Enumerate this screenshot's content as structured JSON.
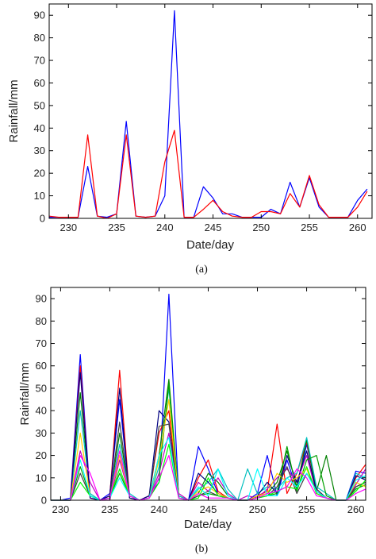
{
  "chart_data": [
    {
      "type": "line",
      "panel_label": "(a)",
      "xlabel": "Date/day",
      "ylabel": "Rainfall/mm",
      "xlim": [
        228,
        261.5
      ],
      "ylim": [
        0,
        95
      ],
      "xticks": [
        230,
        235,
        240,
        245,
        250,
        255,
        260
      ],
      "yticks": [
        0,
        10,
        20,
        30,
        40,
        50,
        60,
        70,
        80,
        90
      ],
      "grid": false,
      "x": [
        228,
        229,
        230,
        231,
        232,
        233,
        234,
        235,
        236,
        237,
        238,
        239,
        240,
        241,
        242,
        243,
        244,
        245,
        246,
        247,
        248,
        249,
        250,
        251,
        252,
        253,
        254,
        255,
        256,
        257,
        258,
        259,
        260,
        261
      ],
      "series": [
        {
          "color": "#0000ff",
          "values": [
            0.5,
            0.5,
            0.5,
            0.5,
            23,
            1,
            0.5,
            2,
            43,
            1,
            0.5,
            1,
            10,
            92,
            0.5,
            0.5,
            14,
            9,
            2,
            2,
            0.5,
            0.5,
            0.5,
            4,
            2,
            16,
            5,
            18,
            5,
            0.5,
            0.5,
            0.5,
            8,
            13
          ]
        },
        {
          "color": "#ff0000",
          "values": [
            1,
            0.5,
            0.5,
            0.5,
            37,
            1,
            0,
            2,
            37,
            1,
            0.5,
            1,
            25,
            39,
            0.5,
            0.5,
            4,
            8,
            3,
            1,
            0.5,
            0.5,
            3,
            3,
            2,
            11,
            5,
            19,
            6,
            0.5,
            0.5,
            0.5,
            5,
            12
          ]
        }
      ]
    },
    {
      "type": "line",
      "panel_label": "(b)",
      "xlabel": "Date/day",
      "ylabel": "Rainfall/mm",
      "xlim": [
        229,
        261
      ],
      "ylim": [
        0,
        95
      ],
      "xticks": [
        230,
        235,
        240,
        245,
        250,
        255,
        260
      ],
      "yticks": [
        0,
        10,
        20,
        30,
        40,
        50,
        60,
        70,
        80,
        90
      ],
      "grid": false,
      "x": [
        229,
        230,
        231,
        232,
        233,
        234,
        235,
        236,
        237,
        238,
        239,
        240,
        241,
        242,
        243,
        244,
        245,
        246,
        247,
        248,
        249,
        250,
        251,
        252,
        253,
        254,
        255,
        256,
        257,
        258,
        259,
        260,
        261
      ],
      "series": [
        {
          "color": "#0000ff",
          "values": [
            0,
            0,
            1,
            65,
            2,
            0,
            3,
            45,
            2,
            0,
            2,
            8,
            92,
            1,
            0,
            24,
            14,
            3,
            1,
            0,
            0,
            3,
            20,
            2,
            18,
            5,
            25,
            5,
            1,
            0,
            0,
            13,
            12
          ]
        },
        {
          "color": "#ff0000",
          "values": [
            0,
            0,
            0,
            60,
            1,
            0,
            2,
            58,
            1,
            0,
            2,
            30,
            40,
            1,
            0,
            10,
            18,
            4,
            1,
            0,
            0,
            2,
            4,
            34,
            3,
            12,
            26,
            4,
            1,
            0,
            0,
            10,
            16
          ]
        },
        {
          "color": "#008000",
          "values": [
            0,
            0,
            0,
            48,
            2,
            0,
            1,
            30,
            2,
            0,
            1,
            20,
            54,
            2,
            0,
            3,
            12,
            8,
            2,
            0,
            0,
            2,
            3,
            8,
            22,
            6,
            27,
            4,
            20,
            0,
            0,
            6,
            8
          ]
        },
        {
          "color": "#00bfbf",
          "values": [
            0,
            0,
            0,
            40,
            3,
            0,
            1,
            25,
            3,
            0,
            1,
            15,
            50,
            2,
            0,
            5,
            8,
            14,
            5,
            0,
            14,
            3,
            6,
            5,
            10,
            12,
            28,
            6,
            3,
            0,
            0,
            12,
            10
          ]
        },
        {
          "color": "#bf00bf",
          "values": [
            0,
            0,
            0,
            22,
            8,
            0,
            0,
            18,
            2,
            0,
            1,
            12,
            30,
            3,
            0,
            8,
            4,
            10,
            3,
            0,
            2,
            1,
            5,
            10,
            14,
            8,
            20,
            3,
            1,
            0,
            0,
            7,
            14
          ]
        },
        {
          "color": "#000080",
          "values": [
            0,
            0,
            0,
            57,
            1,
            0,
            2,
            50,
            1,
            0,
            2,
            40,
            35,
            1,
            0,
            12,
            8,
            3,
            1,
            0,
            0,
            2,
            8,
            3,
            20,
            8,
            22,
            4,
            1,
            0,
            0,
            11,
            9
          ]
        },
        {
          "color": "#00a000",
          "values": [
            0,
            0,
            0,
            15,
            2,
            0,
            1,
            12,
            2,
            0,
            1,
            10,
            52,
            1,
            0,
            2,
            3,
            2,
            1,
            0,
            0,
            1,
            2,
            3,
            24,
            4,
            18,
            20,
            2,
            0,
            0,
            5,
            7
          ]
        },
        {
          "color": "#ffd000",
          "values": [
            0,
            0,
            0,
            30,
            2,
            0,
            1,
            20,
            2,
            0,
            1,
            18,
            45,
            1,
            0,
            4,
            6,
            3,
            1,
            0,
            0,
            2,
            3,
            12,
            8,
            10,
            14,
            3,
            1,
            0,
            0,
            8,
            6
          ]
        },
        {
          "color": "#404040",
          "values": [
            0,
            0,
            0,
            12,
            2,
            0,
            1,
            35,
            2,
            0,
            1,
            33,
            34,
            1,
            0,
            2,
            4,
            2,
            1,
            0,
            0,
            1,
            2,
            6,
            15,
            3,
            12,
            5,
            1,
            0,
            0,
            6,
            8
          ]
        },
        {
          "color": "#00ff00",
          "values": [
            0,
            0,
            0,
            8,
            2,
            0,
            1,
            14,
            2,
            0,
            1,
            8,
            25,
            1,
            0,
            1,
            10,
            2,
            1,
            0,
            0,
            1,
            2,
            4,
            6,
            5,
            15,
            3,
            1,
            0,
            0,
            4,
            9
          ]
        },
        {
          "color": "#00ffff",
          "values": [
            0,
            0,
            0,
            18,
            2,
            0,
            1,
            10,
            2,
            0,
            1,
            20,
            28,
            1,
            0,
            6,
            2,
            14,
            2,
            0,
            0,
            14,
            2,
            2,
            10,
            6,
            12,
            4,
            1,
            0,
            0,
            9,
            11
          ]
        },
        {
          "color": "#ff00ff",
          "values": [
            0,
            0,
            0,
            20,
            12,
            0,
            1,
            22,
            2,
            0,
            1,
            10,
            20,
            1,
            0,
            3,
            1,
            1,
            1,
            0,
            0,
            1,
            3,
            4,
            6,
            14,
            10,
            2,
            1,
            0,
            0,
            3,
            5
          ]
        }
      ]
    }
  ]
}
